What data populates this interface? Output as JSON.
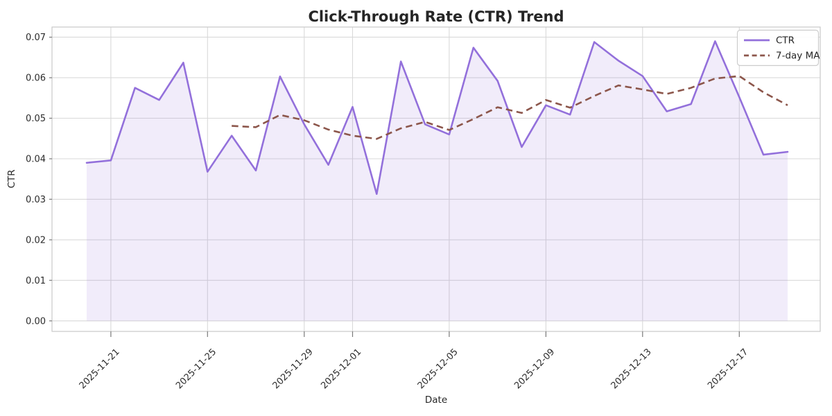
{
  "chart_data": {
    "type": "line",
    "title": "Click-Through Rate (CTR) Trend",
    "xlabel": "Date",
    "ylabel": "CTR",
    "x": [
      "2025-11-20",
      "2025-11-21",
      "2025-11-22",
      "2025-11-23",
      "2025-11-24",
      "2025-11-25",
      "2025-11-26",
      "2025-11-27",
      "2025-11-28",
      "2025-11-29",
      "2025-11-30",
      "2025-12-01",
      "2025-12-02",
      "2025-12-03",
      "2025-12-04",
      "2025-12-05",
      "2025-12-06",
      "2025-12-07",
      "2025-12-08",
      "2025-12-09",
      "2025-12-10",
      "2025-12-11",
      "2025-12-12",
      "2025-12-13",
      "2025-12-14",
      "2025-12-15",
      "2025-12-16",
      "2025-12-17",
      "2025-12-18",
      "2025-12-19"
    ],
    "series": [
      {
        "name": "CTR",
        "style": "solid",
        "color": "#9370db",
        "fill_under": true,
        "fill_opacity": 0.13,
        "values": [
          0.039,
          0.0396,
          0.0575,
          0.0545,
          0.0637,
          0.0368,
          0.0457,
          0.0371,
          0.0603,
          0.0485,
          0.0385,
          0.0528,
          0.0313,
          0.064,
          0.0485,
          0.046,
          0.0674,
          0.0592,
          0.0429,
          0.0532,
          0.0509,
          0.0688,
          0.0642,
          0.0604,
          0.0517,
          0.0535,
          0.069,
          0.0552,
          0.041,
          0.0417
        ]
      },
      {
        "name": "7-day MA",
        "style": "dashed",
        "color": "#8c564b",
        "fill_under": false,
        "values": [
          null,
          null,
          null,
          null,
          null,
          null,
          0.0481,
          0.0478,
          0.0508,
          0.0495,
          0.0472,
          0.0457,
          0.0449,
          0.0475,
          0.0491,
          0.0471,
          0.0498,
          0.0527,
          0.0513,
          0.0545,
          0.0526,
          0.0555,
          0.0581,
          0.0571,
          0.056,
          0.0575,
          0.0598,
          0.0604,
          0.0564,
          0.0532
        ]
      }
    ],
    "x_tick_indices": [
      1,
      5,
      9,
      11,
      15,
      19,
      23,
      27
    ],
    "x_tick_labels": [
      "2025-11-21",
      "2025-11-25",
      "2025-11-29",
      "2025-12-01",
      "2025-12-05",
      "2025-12-09",
      "2025-12-13",
      "2025-12-17"
    ],
    "y_tick_values": [
      0.0,
      0.01,
      0.02,
      0.03,
      0.04,
      0.05,
      0.06,
      0.07
    ],
    "y_tick_labels": [
      "0.00",
      "0.01",
      "0.02",
      "0.03",
      "0.04",
      "0.05",
      "0.06",
      "0.07"
    ],
    "ylim": [
      -0.0026,
      0.0725
    ],
    "grid": true,
    "legend_position": "upper right"
  },
  "colors": {
    "grid": "#d9d9d9",
    "frame": "#c9c9c9",
    "tick_mark": "#7a7a7a",
    "text": "#262626",
    "legend_border": "#cccccc",
    "legend_bg": "#ffffff"
  }
}
